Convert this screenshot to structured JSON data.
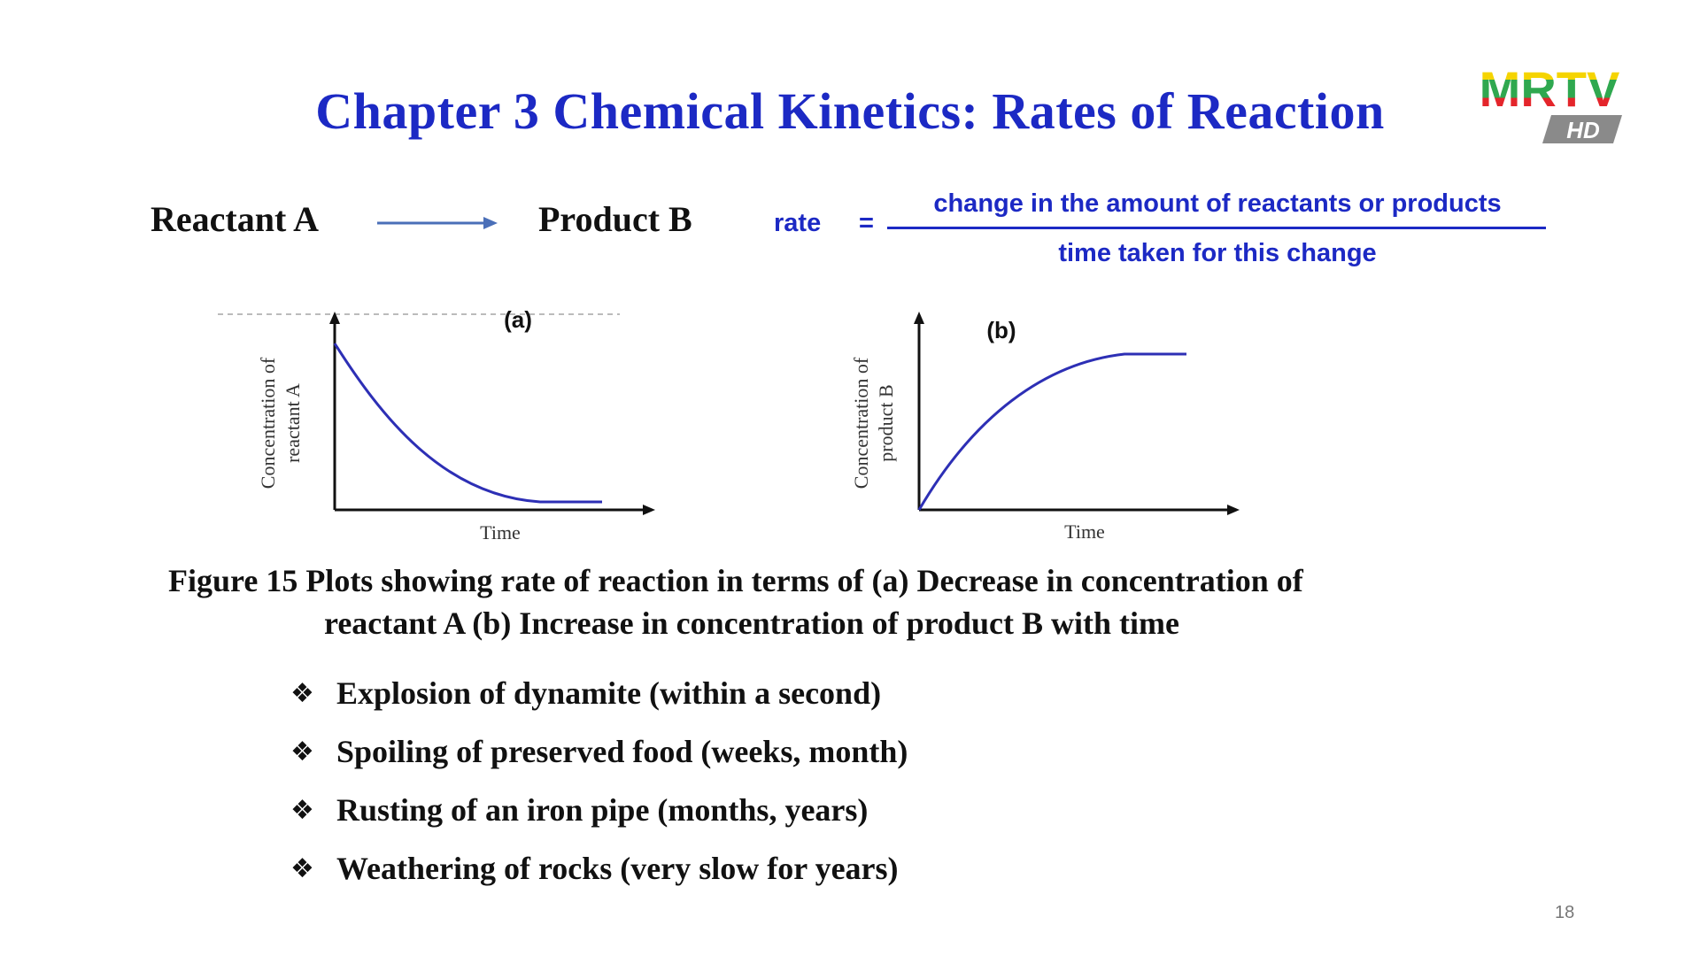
{
  "slide": {
    "title": "Chapter 3  Chemical Kinetics: Rates of Reaction",
    "logo": {
      "main": "MRTV",
      "badge": "HD"
    },
    "equation": {
      "reactant": "Reactant A",
      "product": "Product B",
      "rate_label": "rate",
      "equals": "=",
      "numerator": "change in the amount of reactants or products",
      "denominator": "time taken for this change"
    },
    "plots": [
      {
        "label": "(a)",
        "ylabel_line1": "Concentration of",
        "ylabel_line2": "reactant A",
        "xlabel": "Time"
      },
      {
        "label": "(b)",
        "ylabel_line1": "Concentration of",
        "ylabel_line2": "product B",
        "xlabel": "Time"
      }
    ],
    "caption": {
      "line1": "Figure 15  Plots showing rate of reaction in terms of (a) Decrease in concentration of",
      "line2": "reactant A (b) Increase in concentration of product B with time"
    },
    "bullet_icon": "❖",
    "bullets": [
      "Explosion of dynamite (within a second)",
      "Spoiling of preserved food (weeks, month)",
      "Rusting of an iron pipe (months, years)",
      "Weathering of rocks (very slow for years)"
    ],
    "page_number": "18",
    "colors": {
      "title_blue": "#1c29c4",
      "curve_blue": "#2d2fb5",
      "arrow_blue": "#4a6fb8"
    }
  }
}
